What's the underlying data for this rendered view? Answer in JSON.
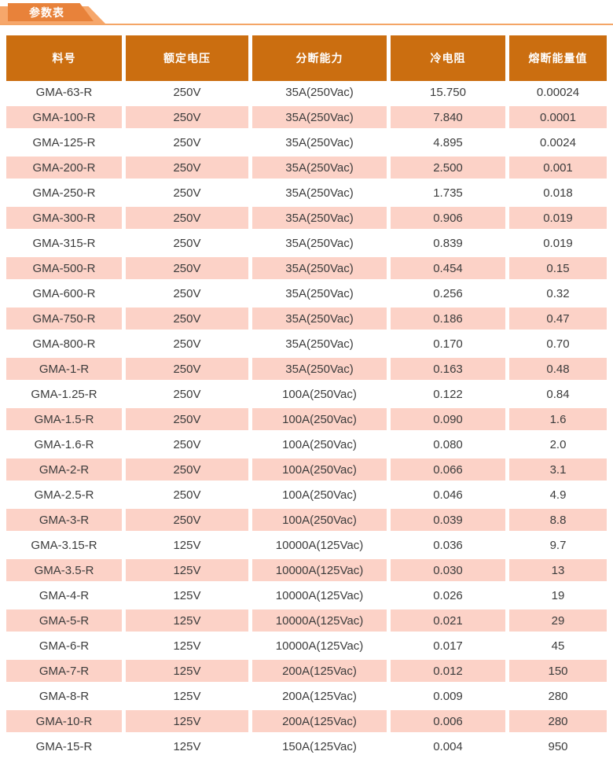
{
  "section": {
    "tab_title": "参数表"
  },
  "table": {
    "columns": [
      "料号",
      "额定电压",
      "分断能力",
      "冷电阻",
      "熔断能量值"
    ],
    "rows": [
      [
        "GMA-63-R",
        "250V",
        "35A(250Vac)",
        "15.750",
        "0.00024"
      ],
      [
        "GMA-100-R",
        "250V",
        "35A(250Vac)",
        "7.840",
        "0.0001"
      ],
      [
        "GMA-125-R",
        "250V",
        "35A(250Vac)",
        "4.895",
        "0.0024"
      ],
      [
        "GMA-200-R",
        "250V",
        "35A(250Vac)",
        "2.500",
        "0.001"
      ],
      [
        "GMA-250-R",
        "250V",
        "35A(250Vac)",
        "1.735",
        "0.018"
      ],
      [
        "GMA-300-R",
        "250V",
        "35A(250Vac)",
        "0.906",
        "0.019"
      ],
      [
        "GMA-315-R",
        "250V",
        "35A(250Vac)",
        "0.839",
        "0.019"
      ],
      [
        "GMA-500-R",
        "250V",
        "35A(250Vac)",
        "0.454",
        "0.15"
      ],
      [
        "GMA-600-R",
        "250V",
        "35A(250Vac)",
        "0.256",
        "0.32"
      ],
      [
        "GMA-750-R",
        "250V",
        "35A(250Vac)",
        "0.186",
        "0.47"
      ],
      [
        "GMA-800-R",
        "250V",
        "35A(250Vac)",
        "0.170",
        "0.70"
      ],
      [
        "GMA-1-R",
        "250V",
        "35A(250Vac)",
        "0.163",
        "0.48"
      ],
      [
        "GMA-1.25-R",
        "250V",
        "100A(250Vac)",
        "0.122",
        "0.84"
      ],
      [
        "GMA-1.5-R",
        "250V",
        "100A(250Vac)",
        "0.090",
        "1.6"
      ],
      [
        "GMA-1.6-R",
        "250V",
        "100A(250Vac)",
        "0.080",
        "2.0"
      ],
      [
        "GMA-2-R",
        "250V",
        "100A(250Vac)",
        "0.066",
        "3.1"
      ],
      [
        "GMA-2.5-R",
        "250V",
        "100A(250Vac)",
        "0.046",
        "4.9"
      ],
      [
        "GMA-3-R",
        "250V",
        "100A(250Vac)",
        "0.039",
        "8.8"
      ],
      [
        "GMA-3.15-R",
        "125V",
        "10000A(125Vac)",
        "0.036",
        "9.7"
      ],
      [
        "GMA-3.5-R",
        "125V",
        "10000A(125Vac)",
        "0.030",
        "13"
      ],
      [
        "GMA-4-R",
        "125V",
        "10000A(125Vac)",
        "0.026",
        "19"
      ],
      [
        "GMA-5-R",
        "125V",
        "10000A(125Vac)",
        "0.021",
        "29"
      ],
      [
        "GMA-6-R",
        "125V",
        "10000A(125Vac)",
        "0.017",
        "45"
      ],
      [
        "GMA-7-R",
        "125V",
        "200A(125Vac)",
        "0.012",
        "150"
      ],
      [
        "GMA-8-R",
        "125V",
        "200A(125Vac)",
        "0.009",
        "280"
      ],
      [
        "GMA-10-R",
        "125V",
        "200A(125Vac)",
        "0.006",
        "280"
      ],
      [
        "GMA-15-R",
        "125V",
        "150A(125Vac)",
        "0.004",
        "950"
      ]
    ]
  },
  "colors": {
    "tab_dark": "#E8823A",
    "tab_light": "#F6A76B",
    "underline": "#F4A566",
    "header_bg": "#CB6E10",
    "header_text": "#FFFFFF",
    "row_alt_bg": "#FCD2C7",
    "body_text": "#3C3C3C"
  }
}
